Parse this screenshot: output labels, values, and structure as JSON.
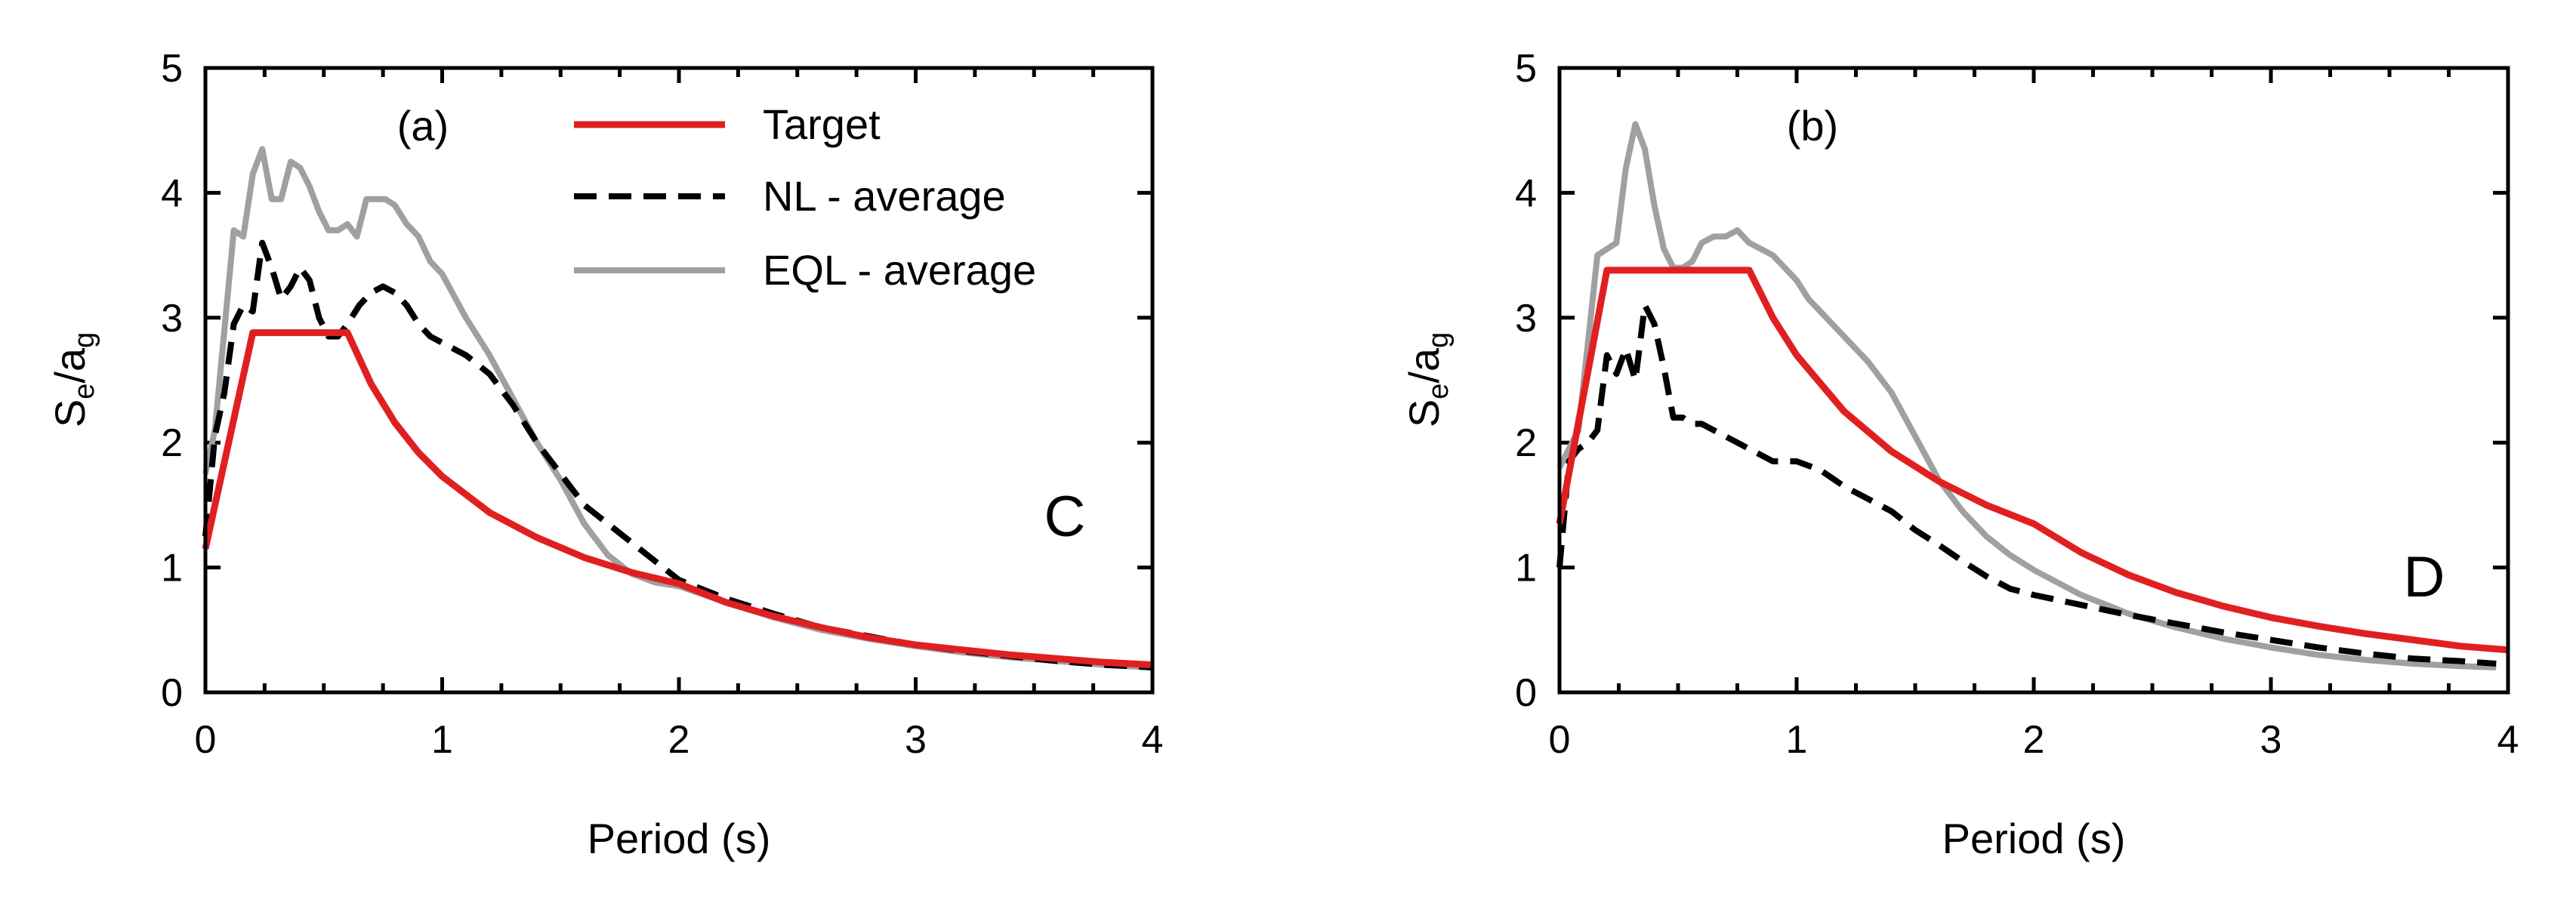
{
  "figure": {
    "aria_label": "Elastic response spectra: target vs NL and EQL averages for soil classes C and D"
  },
  "series_styles": {
    "Target": {
      "color": "#e02020",
      "dash": "solid",
      "width": 9
    },
    "NL - average": {
      "color": "#000000",
      "dash": "dashed",
      "width": 8
    },
    "EQL - average": {
      "color": "#a0a0a0",
      "dash": "solid",
      "width": 8
    }
  },
  "chart_data": [
    {
      "type": "line",
      "panel_label": "(a)",
      "site_class": "C",
      "title": "",
      "xlabel": "Period (s)",
      "ylabel": {
        "main": "S",
        "sub1": "e",
        "slash": "/a",
        "sub2": "g"
      },
      "xlim": [
        0,
        4
      ],
      "ylim": [
        0,
        5
      ],
      "xticks": [
        0,
        1,
        2,
        3,
        4
      ],
      "yticks": [
        0,
        1,
        2,
        3,
        4,
        5
      ],
      "x_tick_labels": [
        "0",
        "1",
        "2",
        "3",
        "4"
      ],
      "y_tick_labels": [
        "0",
        "1",
        "2",
        "3",
        "4",
        "5"
      ],
      "legend": {
        "position": "top-right",
        "entries": [
          "Target",
          "NL - average",
          "EQL - average"
        ]
      },
      "series": [
        {
          "name": "EQL - average",
          "x": [
            0,
            0.04,
            0.08,
            0.12,
            0.16,
            0.2,
            0.24,
            0.28,
            0.32,
            0.36,
            0.4,
            0.44,
            0.48,
            0.52,
            0.56,
            0.6,
            0.64,
            0.68,
            0.72,
            0.76,
            0.8,
            0.85,
            0.9,
            0.95,
            1.0,
            1.1,
            1.2,
            1.3,
            1.4,
            1.5,
            1.6,
            1.7,
            1.8,
            1.9,
            2.0,
            2.2,
            2.4,
            2.6,
            2.8,
            3.0,
            3.2,
            3.4,
            3.6,
            3.8,
            4.0
          ],
          "y": [
            1.75,
            2.1,
            2.9,
            3.7,
            3.65,
            4.15,
            4.35,
            3.95,
            3.95,
            4.25,
            4.2,
            4.05,
            3.85,
            3.7,
            3.7,
            3.75,
            3.65,
            3.95,
            3.95,
            3.95,
            3.9,
            3.75,
            3.65,
            3.45,
            3.35,
            3.0,
            2.7,
            2.35,
            2.0,
            1.7,
            1.35,
            1.1,
            0.95,
            0.88,
            0.85,
            0.72,
            0.6,
            0.5,
            0.43,
            0.37,
            0.32,
            0.28,
            0.25,
            0.22,
            0.2
          ]
        },
        {
          "name": "NL - average",
          "x": [
            0,
            0.04,
            0.08,
            0.12,
            0.16,
            0.2,
            0.24,
            0.28,
            0.32,
            0.36,
            0.4,
            0.44,
            0.48,
            0.52,
            0.56,
            0.6,
            0.65,
            0.7,
            0.75,
            0.8,
            0.85,
            0.9,
            0.95,
            1.0,
            1.1,
            1.2,
            1.3,
            1.4,
            1.5,
            1.6,
            1.7,
            1.8,
            1.9,
            2.0,
            2.2,
            2.4,
            2.6,
            2.8,
            3.0,
            3.2,
            3.4,
            3.6,
            3.8,
            4.0
          ],
          "y": [
            1.25,
            2.05,
            2.4,
            2.95,
            3.1,
            3.05,
            3.6,
            3.4,
            3.15,
            3.25,
            3.4,
            3.3,
            3.0,
            2.85,
            2.85,
            2.95,
            3.1,
            3.2,
            3.25,
            3.2,
            3.1,
            2.95,
            2.85,
            2.8,
            2.7,
            2.55,
            2.3,
            2.0,
            1.75,
            1.5,
            1.35,
            1.2,
            1.05,
            0.9,
            0.75,
            0.63,
            0.52,
            0.45,
            0.38,
            0.33,
            0.29,
            0.25,
            0.22,
            0.2
          ]
        },
        {
          "name": "Target",
          "x": [
            0,
            0.2,
            0.6,
            0.7,
            0.8,
            0.9,
            1.0,
            1.2,
            1.4,
            1.6,
            1.8,
            2.0,
            2.2,
            2.4,
            2.6,
            2.8,
            3.0,
            3.2,
            3.4,
            3.6,
            3.8,
            4.0
          ],
          "y": [
            1.15,
            2.88,
            2.88,
            2.47,
            2.16,
            1.92,
            1.73,
            1.44,
            1.24,
            1.08,
            0.96,
            0.87,
            0.72,
            0.61,
            0.52,
            0.44,
            0.38,
            0.34,
            0.3,
            0.27,
            0.24,
            0.22
          ]
        }
      ]
    },
    {
      "type": "line",
      "panel_label": "(b)",
      "site_class": "D",
      "title": "",
      "xlabel": "Period (s)",
      "ylabel": {
        "main": "S",
        "sub1": "e",
        "slash": "/a",
        "sub2": "g"
      },
      "xlim": [
        0,
        4
      ],
      "ylim": [
        0,
        5
      ],
      "xticks": [
        0,
        1,
        2,
        3,
        4
      ],
      "yticks": [
        0,
        1,
        2,
        3,
        4,
        5
      ],
      "x_tick_labels": [
        "0",
        "1",
        "2",
        "3",
        "4"
      ],
      "y_tick_labels": [
        "0",
        "1",
        "2",
        "3",
        "4",
        "5"
      ],
      "legend": null,
      "series": [
        {
          "name": "EQL - average",
          "x": [
            0,
            0.04,
            0.08,
            0.12,
            0.16,
            0.2,
            0.24,
            0.28,
            0.32,
            0.36,
            0.4,
            0.44,
            0.48,
            0.52,
            0.56,
            0.6,
            0.65,
            0.7,
            0.75,
            0.8,
            0.85,
            0.9,
            0.95,
            1.0,
            1.05,
            1.1,
            1.2,
            1.3,
            1.4,
            1.5,
            1.6,
            1.7,
            1.8,
            1.9,
            2.0,
            2.2,
            2.4,
            2.6,
            2.8,
            3.0,
            3.2,
            3.4,
            3.6,
            3.8,
            3.95
          ],
          "y": [
            1.8,
            1.95,
            2.1,
            2.8,
            3.5,
            3.55,
            3.6,
            4.2,
            4.55,
            4.35,
            3.9,
            3.55,
            3.4,
            3.4,
            3.45,
            3.6,
            3.65,
            3.65,
            3.7,
            3.6,
            3.55,
            3.5,
            3.4,
            3.3,
            3.15,
            3.05,
            2.85,
            2.65,
            2.4,
            2.05,
            1.7,
            1.45,
            1.25,
            1.1,
            0.98,
            0.78,
            0.63,
            0.52,
            0.43,
            0.36,
            0.3,
            0.26,
            0.23,
            0.21,
            0.2
          ]
        },
        {
          "name": "NL - average",
          "x": [
            0,
            0.04,
            0.08,
            0.12,
            0.16,
            0.2,
            0.24,
            0.28,
            0.32,
            0.36,
            0.4,
            0.44,
            0.48,
            0.52,
            0.56,
            0.6,
            0.7,
            0.8,
            0.9,
            1.0,
            1.1,
            1.2,
            1.3,
            1.4,
            1.5,
            1.6,
            1.7,
            1.8,
            1.9,
            2.0,
            2.2,
            2.4,
            2.6,
            2.8,
            3.0,
            3.2,
            3.4,
            3.6,
            3.8,
            3.95
          ],
          "y": [
            1.0,
            1.85,
            1.95,
            2.0,
            2.1,
            2.7,
            2.55,
            2.75,
            2.5,
            3.1,
            2.95,
            2.6,
            2.2,
            2.2,
            2.15,
            2.15,
            2.05,
            1.95,
            1.85,
            1.85,
            1.78,
            1.65,
            1.55,
            1.45,
            1.3,
            1.18,
            1.05,
            0.93,
            0.83,
            0.78,
            0.7,
            0.62,
            0.55,
            0.48,
            0.42,
            0.36,
            0.31,
            0.27,
            0.25,
            0.23
          ]
        },
        {
          "name": "Target",
          "x": [
            0,
            0.2,
            0.8,
            0.9,
            1.0,
            1.2,
            1.4,
            1.6,
            1.8,
            2.0,
            2.2,
            2.4,
            2.6,
            2.8,
            3.0,
            3.2,
            3.4,
            3.6,
            3.8,
            4.0
          ],
          "y": [
            1.35,
            3.38,
            3.38,
            3.0,
            2.7,
            2.25,
            1.93,
            1.69,
            1.5,
            1.35,
            1.12,
            0.94,
            0.8,
            0.69,
            0.6,
            0.53,
            0.47,
            0.42,
            0.37,
            0.34
          ]
        }
      ]
    }
  ]
}
